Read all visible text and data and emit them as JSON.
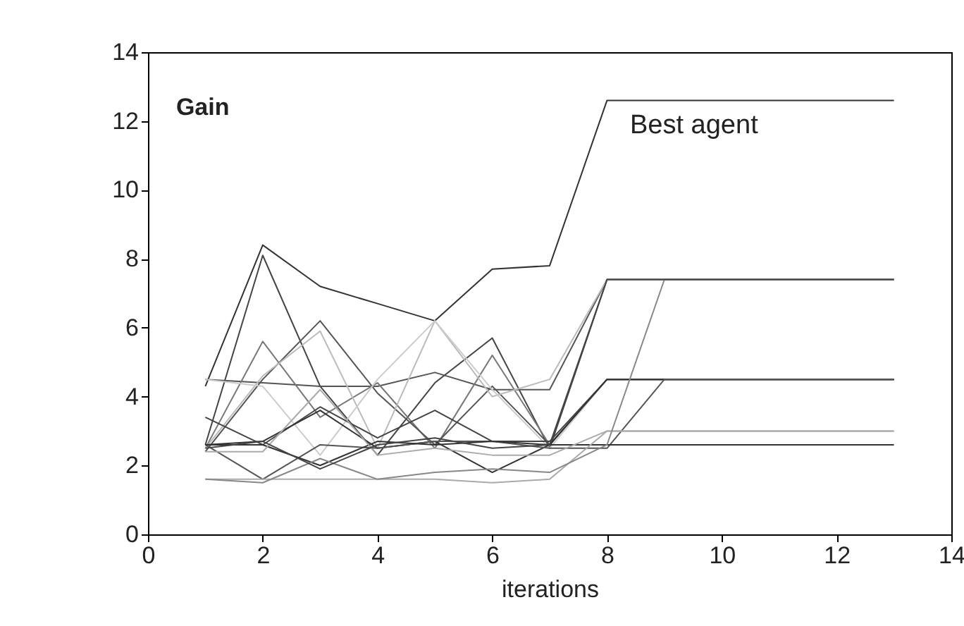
{
  "chart_data": {
    "type": "line",
    "ylabel": "Gain",
    "xlabel": "iterations",
    "annotations": [
      "Best agent"
    ],
    "xlim": [
      0,
      14
    ],
    "ylim": [
      0,
      14
    ],
    "xticks": [
      0,
      2,
      4,
      6,
      8,
      10,
      12,
      14
    ],
    "yticks": [
      0,
      2,
      4,
      6,
      8,
      10,
      12,
      14
    ],
    "grid": false,
    "legend": false,
    "marker": "none",
    "line_style": "solid",
    "series": [
      {
        "color": "#333333",
        "x": [
          1,
          2,
          3,
          4,
          5,
          6,
          7,
          8,
          13
        ],
        "values": [
          4.3,
          8.4,
          7.2,
          6.7,
          6.2,
          7.7,
          7.8,
          12.6,
          12.6
        ]
      },
      {
        "color": "#444444",
        "x": [
          1,
          2,
          3,
          4,
          5,
          6,
          7,
          8,
          13
        ],
        "values": [
          2.6,
          8.1,
          4.3,
          2.3,
          4.4,
          5.7,
          2.5,
          7.4,
          7.4
        ]
      },
      {
        "color": "#555555",
        "x": [
          1,
          2,
          3,
          4,
          5,
          6,
          7,
          8,
          13
        ],
        "values": [
          4.5,
          4.4,
          4.3,
          4.3,
          4.7,
          4.2,
          4.2,
          7.4,
          7.4
        ]
      },
      {
        "color": "#777777",
        "x": [
          1,
          2,
          3,
          4,
          5,
          6,
          7,
          8,
          13
        ],
        "values": [
          2.5,
          5.6,
          3.4,
          4.4,
          2.5,
          5.2,
          2.6,
          4.5,
          4.5
        ]
      },
      {
        "color": "#555555",
        "x": [
          1,
          2,
          3,
          4,
          5,
          6,
          7,
          8,
          13
        ],
        "values": [
          2.4,
          4.5,
          6.2,
          4.1,
          2.6,
          4.3,
          2.6,
          4.5,
          4.5
        ]
      },
      {
        "color": "#bbbbbb",
        "x": [
          1,
          2,
          3,
          4,
          5,
          6,
          7,
          8,
          13
        ],
        "values": [
          2.5,
          4.6,
          5.9,
          2.5,
          6.2,
          4.0,
          4.5,
          7.4,
          7.4
        ]
      },
      {
        "color": "#cccccc",
        "x": [
          1,
          2,
          3,
          4,
          5,
          6,
          7,
          8,
          13
        ],
        "values": [
          4.5,
          4.3,
          2.3,
          4.5,
          6.2,
          4.2,
          2.5,
          4.5,
          4.5
        ]
      },
      {
        "color": "#444444",
        "x": [
          1,
          2,
          3,
          4,
          5,
          6,
          7,
          8,
          13
        ],
        "values": [
          3.4,
          2.6,
          3.7,
          2.8,
          3.6,
          2.7,
          2.7,
          4.5,
          4.5
        ]
      },
      {
        "color": "#333333",
        "x": [
          1,
          2,
          3,
          4,
          5,
          6,
          7,
          8,
          13
        ],
        "values": [
          2.6,
          2.7,
          3.6,
          2.5,
          2.7,
          1.8,
          2.6,
          4.5,
          4.5
        ]
      },
      {
        "color": "#555555",
        "x": [
          1,
          2,
          3,
          4,
          5,
          6,
          7,
          8,
          9,
          13
        ],
        "values": [
          2.6,
          1.6,
          2.6,
          2.5,
          2.7,
          2.7,
          2.5,
          2.5,
          4.5,
          4.5
        ]
      },
      {
        "color": "#333333",
        "x": [
          1,
          2,
          3,
          4,
          5,
          6,
          7,
          8,
          13
        ],
        "values": [
          2.6,
          2.6,
          2.0,
          2.7,
          2.6,
          2.7,
          2.6,
          2.6,
          2.6
        ]
      },
      {
        "color": "#aaaaaa",
        "x": [
          1,
          2,
          3,
          4,
          5,
          6,
          7,
          8,
          13
        ],
        "values": [
          2.4,
          2.4,
          4.2,
          2.3,
          2.5,
          2.3,
          2.3,
          3.0,
          3.0
        ]
      },
      {
        "color": "#aaaaaa",
        "x": [
          1,
          2,
          3,
          4,
          5,
          6,
          7,
          8,
          13
        ],
        "values": [
          1.6,
          1.6,
          1.6,
          1.6,
          1.6,
          1.5,
          1.6,
          3.0,
          3.0
        ]
      },
      {
        "color": "#888888",
        "x": [
          1,
          2,
          3,
          4,
          5,
          6,
          7,
          8,
          9,
          13
        ],
        "values": [
          1.6,
          1.5,
          2.2,
          1.6,
          1.8,
          1.9,
          1.8,
          2.6,
          7.4,
          7.4
        ]
      },
      {
        "color": "#444444",
        "x": [
          1,
          2,
          3,
          4,
          5,
          6,
          7,
          8,
          13
        ],
        "values": [
          2.5,
          2.7,
          1.9,
          2.6,
          2.8,
          2.5,
          2.6,
          7.4,
          7.4
        ]
      }
    ]
  }
}
